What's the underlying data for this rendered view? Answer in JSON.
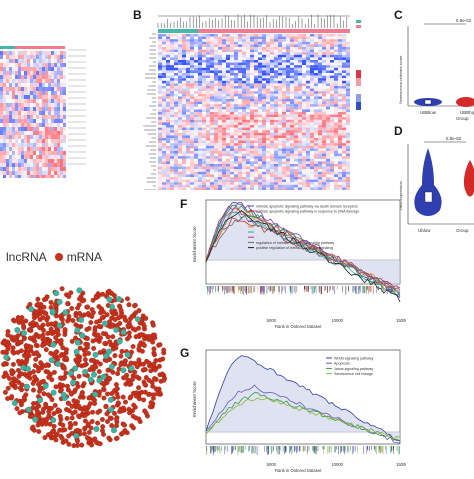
{
  "figure": {
    "panels": [
      "B",
      "C",
      "D",
      "F",
      "G"
    ],
    "colors": {
      "heat_red": "#d8364b",
      "heat_blue": "#2f4fc6",
      "teal": "#46b7a8",
      "pink": "#f07a90",
      "network_red": "#c8321c",
      "network_teal": "#3fb2a0"
    }
  },
  "panelB": {
    "letter": "B"
  },
  "panelC": {
    "letter": "C",
    "pvalue": "5.8e-52",
    "ylabel": "Senescence-relevant score",
    "xlabel": "Group",
    "groups": [
      "UBBlow",
      "UBBhigh"
    ]
  },
  "panelD": {
    "letter": "D",
    "pvalue": "5.8e-52",
    "ylabel": "UBD expression",
    "xlabel": "Group",
    "groups": [
      "Ublow",
      "UBBhigh"
    ]
  },
  "network": {
    "legend": [
      {
        "label": "lncRNA",
        "color": "#3fb2a0"
      },
      {
        "label": "mRNA",
        "color": "#c8321c"
      }
    ]
  },
  "panelF": {
    "letter": "F",
    "ylabel": "Enrichment Score",
    "xlabel": "Rank in Ordered Dataset",
    "xticks": [
      "5000",
      "10000",
      "15000"
    ],
    "legend": [
      "intrinsic apoptotic signaling pathway via death domain receptors",
      "intrinsic apoptotic signaling pathway in response to DNA damage",
      "",
      "",
      "",
      "",
      "",
      "regulation of intrinsic apoptotic signaling pathway",
      "positive regulation of intrinsic apoptotic signaling"
    ],
    "line_colors": [
      "#3a4ea8",
      "#d4302b",
      "#2f9e44",
      "#8e44ad",
      "#e0962a",
      "#2aa6b5",
      "#b03a6e",
      "#6b6b6b",
      "#1f1f1f"
    ]
  },
  "panelG": {
    "letter": "G",
    "ylabel": "Enrichment Score",
    "xlabel": "Rank in Ordered Dataset",
    "xticks": [
      "5000",
      "10000",
      "15000"
    ],
    "legend": [
      "Wnt/B signaling pathway",
      "Apoptosis",
      "Janus signaling pathway",
      "Senescence cell lineage"
    ],
    "line_colors": [
      "#2d3fa6",
      "#6b58c8",
      "#2f9e44",
      "#8fb33b"
    ]
  }
}
